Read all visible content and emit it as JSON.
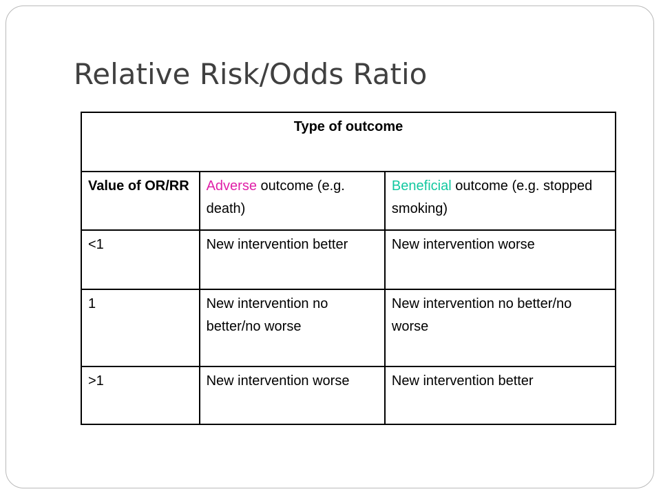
{
  "title": "Relative Risk/Odds Ratio",
  "colors": {
    "title": "#404040",
    "adverse": "#e020a8",
    "beneficial": "#12c8a0"
  },
  "table": {
    "header": "Type of outcome",
    "columns": {
      "value": "Value of OR/RR",
      "adverse_keyword": "Adverse",
      "adverse_rest": " outcome (e.g. death)",
      "beneficial_keyword": "Beneficial",
      "beneficial_rest": " outcome (e.g. stopped smoking)"
    },
    "rows": [
      {
        "value": "<1",
        "adverse": "New intervention better",
        "beneficial": "New intervention worse"
      },
      {
        "value": "1",
        "adverse": "New intervention no better/no worse",
        "beneficial": "New intervention no better/no worse"
      },
      {
        "value": ">1",
        "adverse": "New intervention worse",
        "beneficial": "New intervention better"
      }
    ]
  }
}
